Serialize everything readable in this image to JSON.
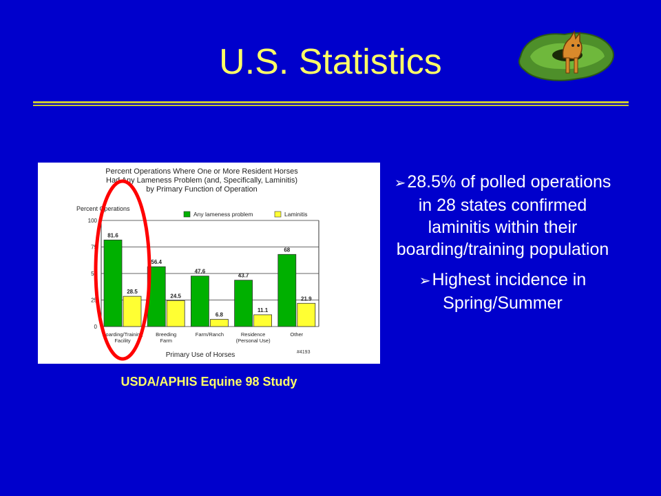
{
  "slide": {
    "title": "U.S. Statistics",
    "caption": "USDA/APHIS Equine 98 Study",
    "bullet_marker": "➢",
    "bullets": [
      "28.5% of polled operations in 28 states confirmed laminitis within their boarding/training population",
      "Highest incidence in Spring/Summer"
    ]
  },
  "colors": {
    "background": "#0000cc",
    "title": "#ffff66",
    "lameness": "#00b000",
    "laminitis": "#ffff33",
    "highlight": "#ff0000"
  },
  "chart_data": {
    "type": "bar",
    "title_lines": [
      "Percent Operations Where One or More Resident Horses",
      "Had Any Lameness Problem (and, Specifically, Laminitis)",
      "by Primary Function of Operation"
    ],
    "ylabel": "Percent Operations",
    "xlabel": "Primary Use of Horses",
    "ylim": [
      0,
      100
    ],
    "yticks": [
      "0",
      "25",
      "50",
      "75",
      "100"
    ],
    "categories": [
      [
        "Boarding/Training",
        "Facility"
      ],
      [
        "Breeding",
        "Farm"
      ],
      [
        "Farm/Ranch"
      ],
      [
        "Residence",
        "(Personal Use)"
      ],
      [
        "Other"
      ]
    ],
    "series": [
      {
        "name": "Any lameness problem",
        "values": [
          81.6,
          56.4,
          47.6,
          43.7,
          68
        ],
        "labels": [
          "81.6",
          "56.4",
          "47.6",
          "43.7",
          "68"
        ]
      },
      {
        "name": "Laminitis",
        "values": [
          28.5,
          24.5,
          6.8,
          11.1,
          21.9
        ],
        "labels": [
          "28.5",
          "24.5",
          "6.8",
          "11.1",
          "21.9"
        ]
      }
    ],
    "note": "#4193",
    "highlighted_category": 0
  }
}
